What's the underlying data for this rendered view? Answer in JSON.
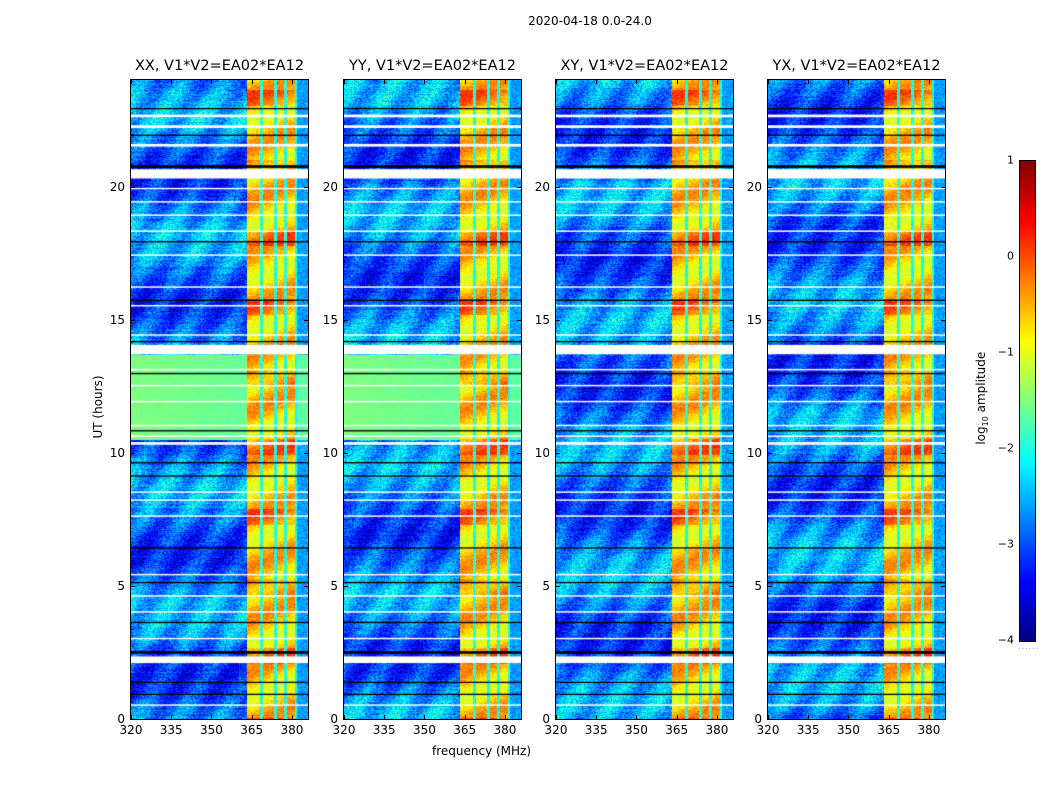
{
  "suptitle": "2020-04-18 0.0-24.0",
  "colors": {
    "band_hot": "#ff8c00",
    "background_low": "#0a40ff",
    "flag_white": "#ffffff",
    "flag_black": "#000000"
  },
  "chart_data": [
    {
      "type": "heatmap",
      "title": "XX, V1*V2=EA02*EA12",
      "polarization": "XX",
      "xlabel": "frequency (MHz)",
      "ylabel": "UT (hours)",
      "xlim": [
        320,
        386
      ],
      "ylim": [
        0,
        24
      ],
      "xticks": [
        "320",
        "335",
        "350",
        "365",
        "380"
      ],
      "yticks": [
        "0",
        "5",
        "10",
        "15",
        "20"
      ],
      "green_block_hours": [
        10.5,
        13.7
      ],
      "rfi_band_mhz": [
        360,
        380
      ]
    },
    {
      "type": "heatmap",
      "title": "YY, V1*V2=EA02*EA12",
      "polarization": "YY",
      "xlabel": "frequency (MHz)",
      "ylabel": "",
      "xlim": [
        320,
        386
      ],
      "ylim": [
        0,
        24
      ],
      "xticks": [
        "320",
        "335",
        "350",
        "365",
        "380"
      ],
      "yticks": [
        "0",
        "5",
        "10",
        "15",
        "20"
      ],
      "green_block_hours": [
        10.5,
        13.7
      ],
      "rfi_band_mhz": [
        360,
        380
      ]
    },
    {
      "type": "heatmap",
      "title": "XY, V1*V2=EA02*EA12",
      "polarization": "XY",
      "xlabel": "",
      "ylabel": "",
      "xlim": [
        320,
        386
      ],
      "ylim": [
        0,
        24
      ],
      "xticks": [
        "320",
        "335",
        "350",
        "365",
        "380"
      ],
      "yticks": [
        "0",
        "5",
        "10",
        "15",
        "20"
      ],
      "green_block_hours": null,
      "rfi_band_mhz": [
        360,
        380
      ]
    },
    {
      "type": "heatmap",
      "title": "YX, V1*V2=EA02*EA12",
      "polarization": "YX",
      "xlabel": "",
      "ylabel": "",
      "xlim": [
        320,
        386
      ],
      "ylim": [
        0,
        24
      ],
      "xticks": [
        "320",
        "335",
        "350",
        "365",
        "380"
      ],
      "yticks": [
        "0",
        "5",
        "10",
        "15",
        "20"
      ],
      "green_block_hours": null,
      "rfi_band_mhz": [
        360,
        380
      ]
    }
  ],
  "shared": {
    "xlabel": "frequency (MHz)",
    "ylabel": "UT (hours)",
    "flagged_white_hours": [
      [
        20.3,
        20.65
      ],
      [
        13.7,
        14.05
      ],
      [
        2.1,
        2.35
      ],
      [
        22.6,
        22.7
      ],
      [
        22.2,
        22.3
      ],
      [
        21.5,
        21.6
      ],
      [
        19.9,
        19.95
      ],
      [
        19.4,
        19.45
      ],
      [
        18.9,
        18.95
      ],
      [
        18.3,
        18.35
      ],
      [
        17.4,
        17.45
      ],
      [
        16.2,
        16.25
      ],
      [
        15.5,
        15.55
      ],
      [
        14.4,
        14.45
      ],
      [
        13.1,
        13.15
      ],
      [
        12.5,
        12.55
      ],
      [
        11.9,
        11.95
      ],
      [
        11.0,
        11.05
      ],
      [
        10.6,
        10.65
      ],
      [
        10.3,
        10.4
      ],
      [
        8.5,
        8.55
      ],
      [
        8.2,
        8.25
      ],
      [
        7.6,
        7.65
      ],
      [
        5.4,
        5.45
      ],
      [
        4.6,
        4.65
      ],
      [
        4.0,
        4.05
      ],
      [
        3.0,
        3.05
      ],
      [
        0.5,
        0.55
      ]
    ],
    "flagged_black_hours": [
      [
        20.7,
        20.8
      ],
      [
        22.9,
        22.95
      ],
      [
        21.9,
        21.95
      ],
      [
        17.9,
        17.95
      ],
      [
        15.7,
        15.75
      ],
      [
        14.15,
        14.2
      ],
      [
        12.95,
        13.0
      ],
      [
        10.8,
        10.85
      ],
      [
        9.6,
        9.65
      ],
      [
        9.1,
        9.15
      ],
      [
        6.4,
        6.45
      ],
      [
        5.1,
        5.15
      ],
      [
        3.6,
        3.65
      ],
      [
        2.45,
        2.55
      ],
      [
        1.35,
        1.4
      ],
      [
        0.9,
        0.95
      ]
    ]
  },
  "colorbar": {
    "label_main": "log",
    "label_sub": "10",
    "label_rest": " amplitude",
    "min": -4,
    "max": 1,
    "ticks": [
      "1",
      "0",
      "−1",
      "−2",
      "−3",
      "−4"
    ],
    "colormap": "jet"
  }
}
